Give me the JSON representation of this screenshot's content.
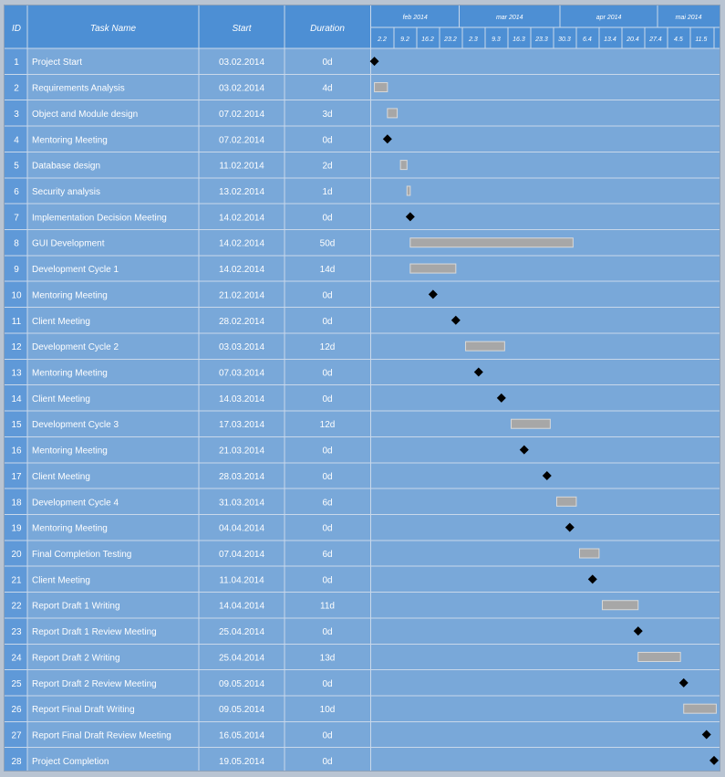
{
  "header": {
    "id_label": "ID",
    "task_label": "Task Name",
    "start_label": "Start",
    "duration_label": "Duration"
  },
  "colors": {
    "header": "#4d8fd4",
    "row": "#79a8d9",
    "grid": "#c9d8ea",
    "bar": "#a7a7a7",
    "milestone": "#000000"
  },
  "chart_data": {
    "type": "table",
    "timeline_start": "2014-02-02",
    "timeline_end": "2014-05-20",
    "months": [
      {
        "label": "feb 2014",
        "start": "2014-02-02",
        "end": "2014-03-01"
      },
      {
        "label": "mar 2014",
        "start": "2014-03-01",
        "end": "2014-04-01"
      },
      {
        "label": "apr 2014",
        "start": "2014-04-01",
        "end": "2014-05-01"
      },
      {
        "label": "mai 2014",
        "start": "2014-05-01",
        "end": "2014-05-20"
      }
    ],
    "weeks": [
      {
        "label": "2.2",
        "date": "2014-02-02"
      },
      {
        "label": "9.2",
        "date": "2014-02-09"
      },
      {
        "label": "16.2",
        "date": "2014-02-16"
      },
      {
        "label": "23.2",
        "date": "2014-02-23"
      },
      {
        "label": "2.3",
        "date": "2014-03-02"
      },
      {
        "label": "9.3",
        "date": "2014-03-09"
      },
      {
        "label": "16.3",
        "date": "2014-03-16"
      },
      {
        "label": "23.3",
        "date": "2014-03-23"
      },
      {
        "label": "30.3",
        "date": "2014-03-30"
      },
      {
        "label": "6.4",
        "date": "2014-04-06"
      },
      {
        "label": "13.4",
        "date": "2014-04-13"
      },
      {
        "label": "20.4",
        "date": "2014-04-20"
      },
      {
        "label": "27.4",
        "date": "2014-04-27"
      },
      {
        "label": "4.5",
        "date": "2014-05-04"
      },
      {
        "label": "11.5",
        "date": "2014-05-11"
      }
    ],
    "tasks": [
      {
        "id": "1",
        "name": "Project Start",
        "start": "03.02.2014",
        "duration": "0d",
        "date": "2014-02-03",
        "days": 0
      },
      {
        "id": "2",
        "name": "Requirements Analysis",
        "start": "03.02.2014",
        "duration": "4d",
        "date": "2014-02-03",
        "days": 4
      },
      {
        "id": "3",
        "name": "Object and Module design",
        "start": "07.02.2014",
        "duration": "3d",
        "date": "2014-02-07",
        "days": 3
      },
      {
        "id": "4",
        "name": "Mentoring Meeting",
        "start": "07.02.2014",
        "duration": "0d",
        "date": "2014-02-07",
        "days": 0
      },
      {
        "id": "5",
        "name": "Database design",
        "start": "11.02.2014",
        "duration": "2d",
        "date": "2014-02-11",
        "days": 2
      },
      {
        "id": "6",
        "name": "Security analysis",
        "start": "13.02.2014",
        "duration": "1d",
        "date": "2014-02-13",
        "days": 1
      },
      {
        "id": "7",
        "name": "Implementation Decision Meeting",
        "start": "14.02.2014",
        "duration": "0d",
        "date": "2014-02-14",
        "days": 0
      },
      {
        "id": "8",
        "name": "GUI Development",
        "start": "14.02.2014",
        "duration": "50d",
        "date": "2014-02-14",
        "days": 50
      },
      {
        "id": "9",
        "name": "Development Cycle 1",
        "start": "14.02.2014",
        "duration": "14d",
        "date": "2014-02-14",
        "days": 14
      },
      {
        "id": "10",
        "name": "Mentoring Meeting",
        "start": "21.02.2014",
        "duration": "0d",
        "date": "2014-02-21",
        "days": 0
      },
      {
        "id": "11",
        "name": "Client Meeting",
        "start": "28.02.2014",
        "duration": "0d",
        "date": "2014-02-28",
        "days": 0
      },
      {
        "id": "12",
        "name": "Development Cycle 2",
        "start": "03.03.2014",
        "duration": "12d",
        "date": "2014-03-03",
        "days": 12
      },
      {
        "id": "13",
        "name": "Mentoring Meeting",
        "start": "07.03.2014",
        "duration": "0d",
        "date": "2014-03-07",
        "days": 0
      },
      {
        "id": "14",
        "name": "Client Meeting",
        "start": "14.03.2014",
        "duration": "0d",
        "date": "2014-03-14",
        "days": 0
      },
      {
        "id": "15",
        "name": "Development Cycle 3",
        "start": "17.03.2014",
        "duration": "12d",
        "date": "2014-03-17",
        "days": 12
      },
      {
        "id": "16",
        "name": "Mentoring Meeting",
        "start": "21.03.2014",
        "duration": "0d",
        "date": "2014-03-21",
        "days": 0
      },
      {
        "id": "17",
        "name": "Client Meeting",
        "start": "28.03.2014",
        "duration": "0d",
        "date": "2014-03-28",
        "days": 0
      },
      {
        "id": "18",
        "name": "Development Cycle 4",
        "start": "31.03.2014",
        "duration": "6d",
        "date": "2014-03-31",
        "days": 6
      },
      {
        "id": "19",
        "name": "Mentoring Meeting",
        "start": "04.04.2014",
        "duration": "0d",
        "date": "2014-04-04",
        "days": 0
      },
      {
        "id": "20",
        "name": "Final Completion Testing",
        "start": "07.04.2014",
        "duration": "6d",
        "date": "2014-04-07",
        "days": 6
      },
      {
        "id": "21",
        "name": "Client Meeting",
        "start": "11.04.2014",
        "duration": "0d",
        "date": "2014-04-11",
        "days": 0
      },
      {
        "id": "22",
        "name": "Report Draft 1 Writing",
        "start": "14.04.2014",
        "duration": "11d",
        "date": "2014-04-14",
        "days": 11
      },
      {
        "id": "23",
        "name": "Report Draft 1 Review Meeting",
        "start": "25.04.2014",
        "duration": "0d",
        "date": "2014-04-25",
        "days": 0
      },
      {
        "id": "24",
        "name": "Report Draft 2 Writing",
        "start": "25.04.2014",
        "duration": "13d",
        "date": "2014-04-25",
        "days": 13
      },
      {
        "id": "25",
        "name": "Report Draft 2 Review Meeting",
        "start": "09.05.2014",
        "duration": "0d",
        "date": "2014-05-09",
        "days": 0
      },
      {
        "id": "26",
        "name": "Report Final Draft Writing",
        "start": "09.05.2014",
        "duration": "10d",
        "date": "2014-05-09",
        "days": 10
      },
      {
        "id": "27",
        "name": "Report Final Draft Review Meeting",
        "start": "16.05.2014",
        "duration": "0d",
        "date": "2014-05-16",
        "days": 0
      },
      {
        "id": "28",
        "name": "Project Completion",
        "start": "19.05.2014",
        "duration": "0d",
        "date": "2014-05-19",
        "days": 0
      }
    ]
  }
}
